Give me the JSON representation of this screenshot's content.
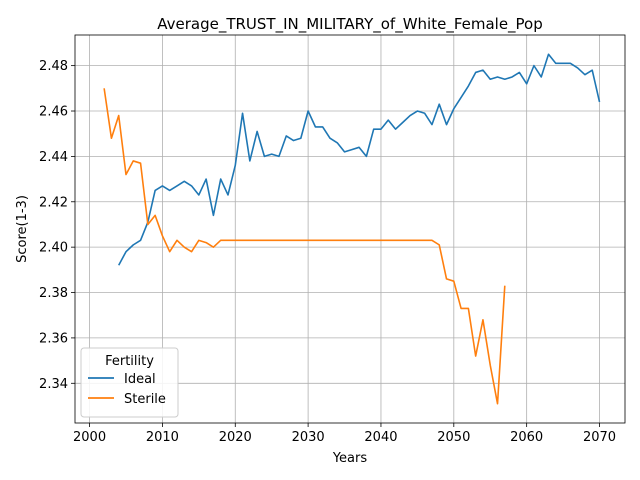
{
  "chart_data": {
    "type": "line",
    "title": "Average_TRUST_IN_MILITARY_of_White_Female_Pop",
    "xlabel": "Years",
    "ylabel": "Score(1-3)",
    "xlim": [
      1998,
      2073.5
    ],
    "ylim": [
      2.3225,
      2.4935
    ],
    "xticks": [
      2000,
      2010,
      2020,
      2030,
      2040,
      2050,
      2060,
      2070
    ],
    "yticks": [
      2.34,
      2.36,
      2.38,
      2.4,
      2.42,
      2.44,
      2.46,
      2.48
    ],
    "grid": true,
    "legend": {
      "title": "Fertility",
      "position": "lower-left"
    },
    "series": [
      {
        "name": "Ideal",
        "color": "#1f77b4",
        "x": [
          2004,
          2005,
          2006,
          2007,
          2008,
          2009,
          2010,
          2011,
          2012,
          2013,
          2014,
          2015,
          2016,
          2017,
          2018,
          2019,
          2020,
          2021,
          2022,
          2023,
          2024,
          2025,
          2026,
          2027,
          2028,
          2029,
          2030,
          2031,
          2032,
          2033,
          2034,
          2035,
          2036,
          2037,
          2038,
          2039,
          2040,
          2041,
          2042,
          2043,
          2044,
          2045,
          2046,
          2047,
          2048,
          2049,
          2050,
          2051,
          2052,
          2053,
          2054,
          2055,
          2056,
          2057,
          2058,
          2059,
          2060,
          2061,
          2062,
          2063,
          2064,
          2065,
          2066,
          2067,
          2068,
          2069,
          2070
        ],
        "y": [
          2.392,
          2.398,
          2.401,
          2.403,
          2.411,
          2.425,
          2.427,
          2.425,
          2.427,
          2.429,
          2.427,
          2.423,
          2.43,
          2.414,
          2.43,
          2.423,
          2.436,
          2.459,
          2.438,
          2.451,
          2.44,
          2.441,
          2.44,
          2.449,
          2.447,
          2.448,
          2.46,
          2.453,
          2.453,
          2.448,
          2.446,
          2.442,
          2.443,
          2.444,
          2.44,
          2.452,
          2.452,
          2.456,
          2.452,
          2.455,
          2.458,
          2.46,
          2.459,
          2.454,
          2.463,
          2.454,
          2.461,
          2.466,
          2.471,
          2.477,
          2.478,
          2.474,
          2.475,
          2.474,
          2.475,
          2.477,
          2.472,
          2.48,
          2.475,
          2.485,
          2.481,
          2.481,
          2.481,
          2.479,
          2.476,
          2.478,
          2.464
        ]
      },
      {
        "name": "Sterile",
        "color": "#ff7f0e",
        "x": [
          2002,
          2003,
          2004,
          2005,
          2006,
          2007,
          2008,
          2009,
          2010,
          2011,
          2012,
          2013,
          2014,
          2015,
          2016,
          2017,
          2018,
          2019,
          2020,
          2021,
          2022,
          2023,
          2024,
          2025,
          2026,
          2027,
          2028,
          2029,
          2030,
          2031,
          2032,
          2033,
          2034,
          2035,
          2036,
          2037,
          2038,
          2039,
          2040,
          2041,
          2042,
          2043,
          2044,
          2045,
          2046,
          2047,
          2048,
          2049,
          2050,
          2051,
          2052,
          2053,
          2054,
          2055,
          2056,
          2057
        ],
        "y": [
          2.47,
          2.448,
          2.458,
          2.432,
          2.438,
          2.437,
          2.41,
          2.414,
          2.405,
          2.398,
          2.403,
          2.4,
          2.398,
          2.403,
          2.402,
          2.4,
          2.403,
          2.403,
          2.403,
          2.403,
          2.403,
          2.403,
          2.403,
          2.403,
          2.403,
          2.403,
          2.403,
          2.403,
          2.403,
          2.403,
          2.403,
          2.403,
          2.403,
          2.403,
          2.403,
          2.403,
          2.403,
          2.403,
          2.403,
          2.403,
          2.403,
          2.403,
          2.403,
          2.403,
          2.403,
          2.403,
          2.401,
          2.386,
          2.385,
          2.373,
          2.373,
          2.352,
          2.368,
          2.348,
          2.331,
          2.383
        ]
      }
    ]
  }
}
